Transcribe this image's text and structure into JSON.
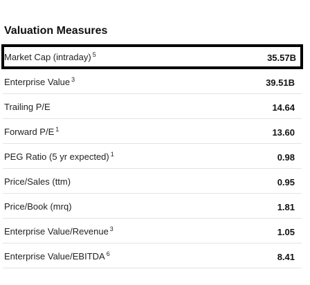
{
  "section": {
    "title": "Valuation Measures"
  },
  "rows": [
    {
      "label": "Market Cap (intraday)",
      "footnote": "5",
      "value": "35.57B"
    },
    {
      "label": "Enterprise Value",
      "footnote": "3",
      "value": "39.51B"
    },
    {
      "label": "Trailing P/E",
      "footnote": "",
      "value": "14.64"
    },
    {
      "label": "Forward P/E",
      "footnote": "1",
      "value": "13.60"
    },
    {
      "label": "PEG Ratio (5 yr expected)",
      "footnote": "1",
      "value": "0.98"
    },
    {
      "label": "Price/Sales (ttm)",
      "footnote": "",
      "value": "0.95"
    },
    {
      "label": "Price/Book (mrq)",
      "footnote": "",
      "value": "1.81"
    },
    {
      "label": "Enterprise Value/Revenue",
      "footnote": "3",
      "value": "1.05"
    },
    {
      "label": "Enterprise Value/EBITDA",
      "footnote": "6",
      "value": "8.41"
    }
  ],
  "highlight_color": "#000000"
}
